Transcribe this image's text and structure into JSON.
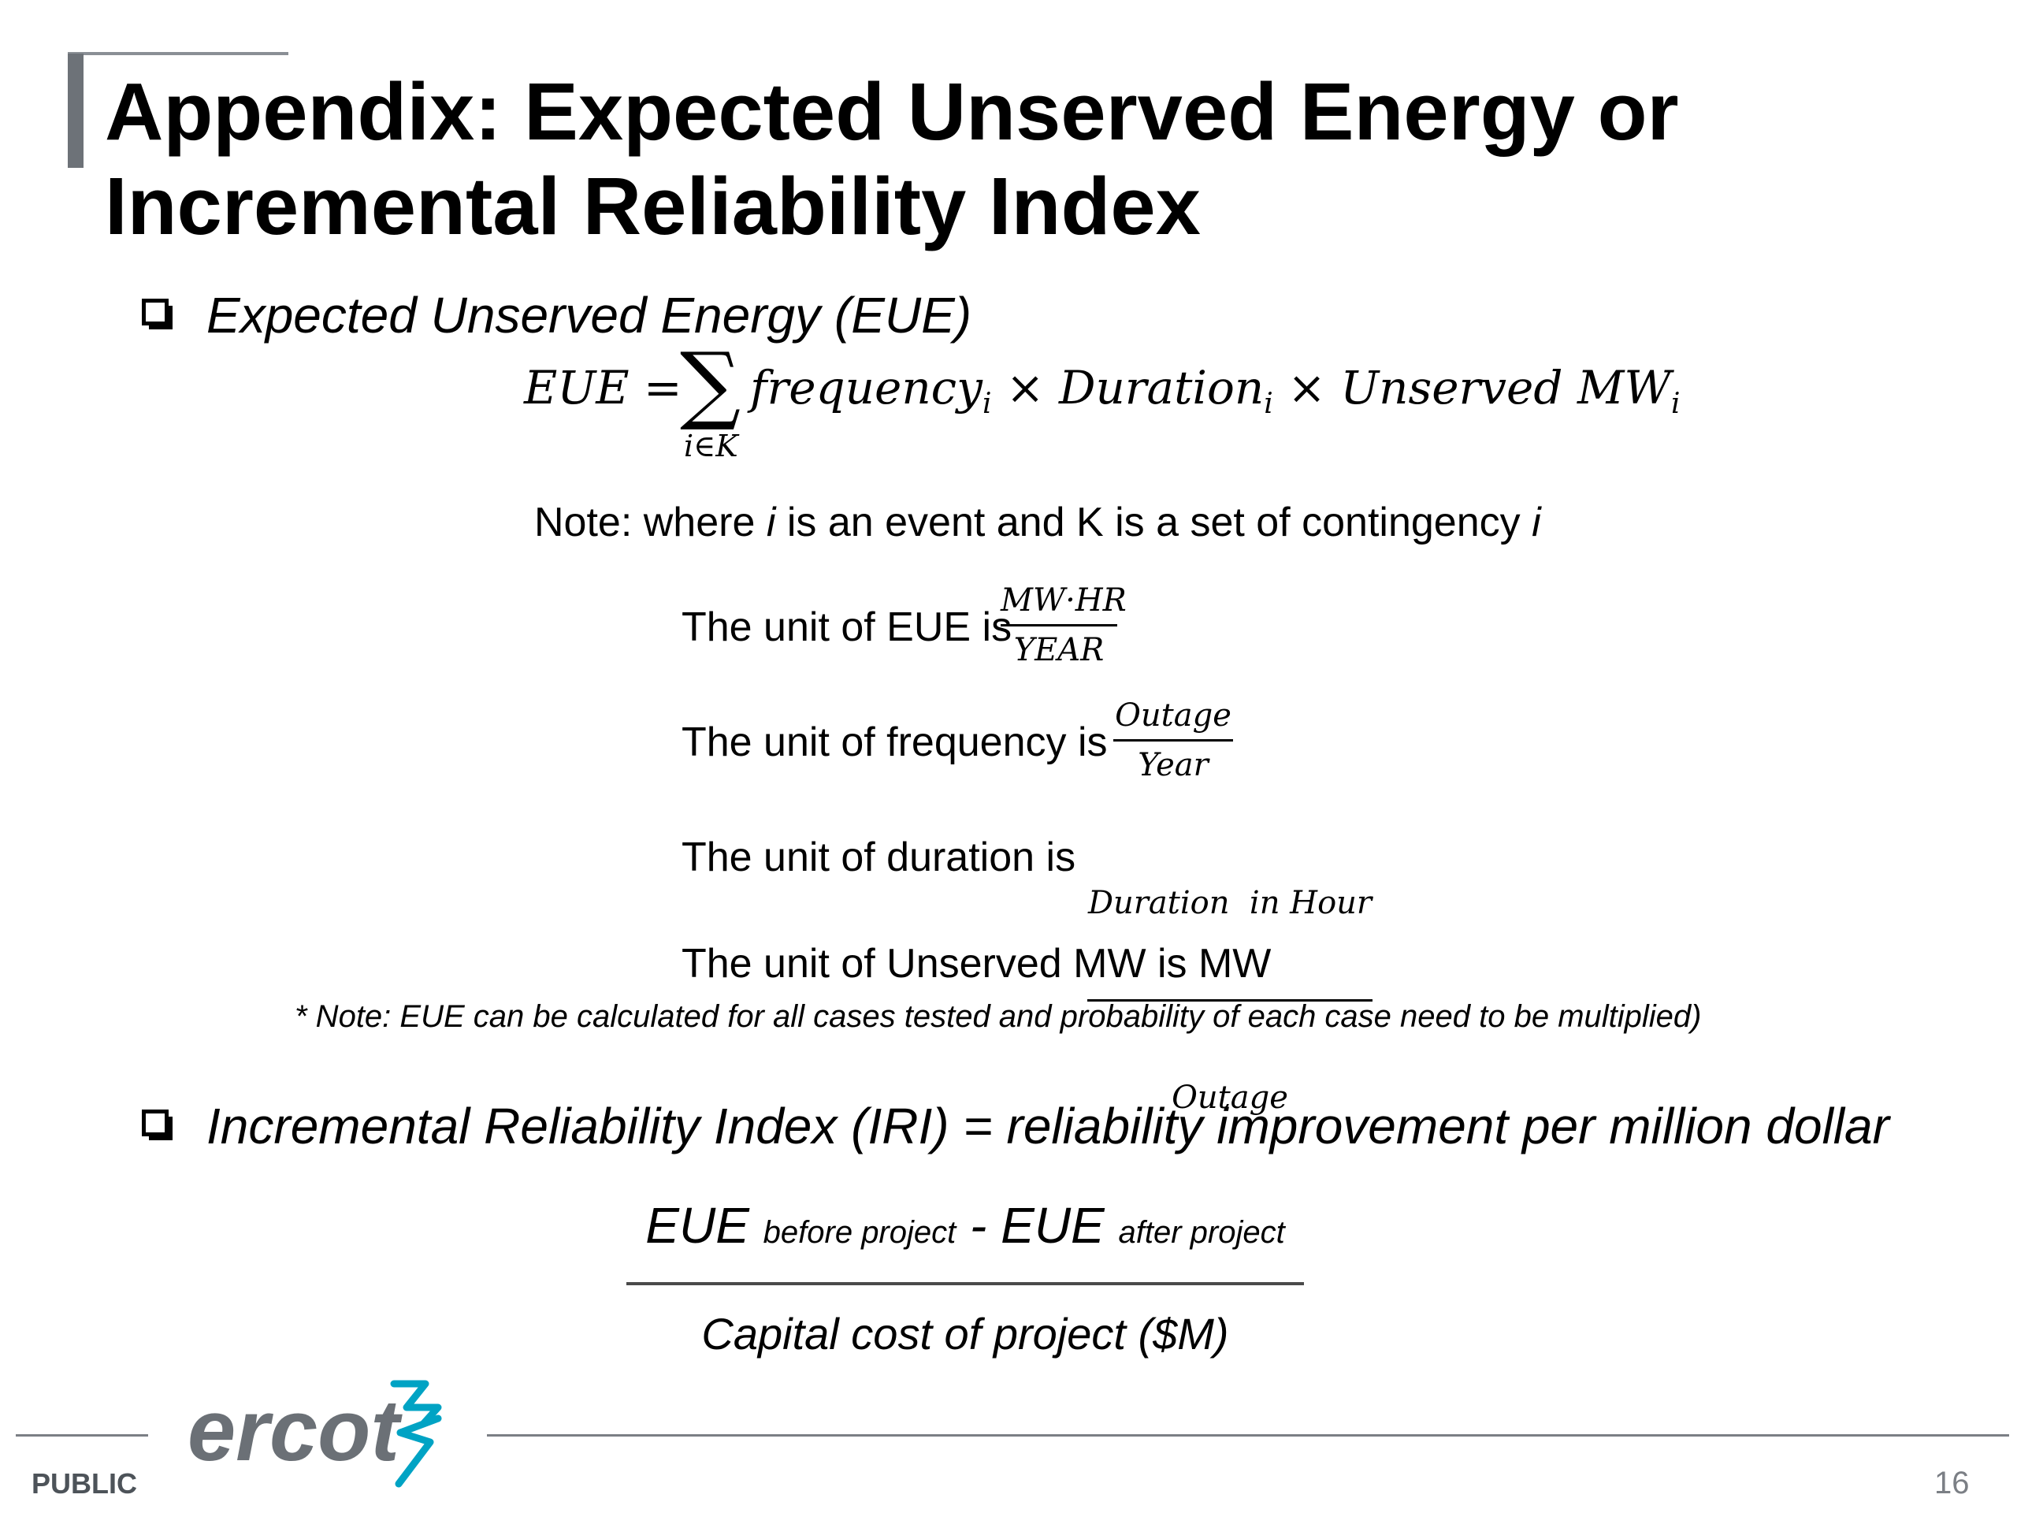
{
  "slide": {
    "title_line1": "Appendix: Expected Unserved Energy or",
    "title_line2": "Incremental Reliability Index",
    "bullet1": "Expected Unserved Energy (EUE)",
    "bullet2": "Incremental Reliability Index (IRI) = reliability improvement per million dollar"
  },
  "formula": {
    "lhs": "EUE =",
    "sigma": "∑",
    "sigma_sub": "i∈K",
    "term1": "frequency",
    "term2": "Duration",
    "term3": "Unserved MW",
    "sub": "i",
    "times": "×"
  },
  "note": {
    "part1": "Note: where ",
    "var1": "i",
    "part2": " is an event and K is a set of contingency ",
    "var2": "i"
  },
  "units": {
    "eue_label": "The unit of EUE is",
    "eue_num": "MW·HR",
    "eue_den": "YEAR",
    "freq_label": "The unit of frequency is",
    "freq_num": "Outage",
    "freq_den": "Year",
    "dur_label": "The unit of duration is",
    "dur_num": "Duration  in Hour",
    "dur_den": "Outage",
    "mw_label": "The unit of Unserved MW is MW"
  },
  "star_note": "* Note: EUE can be calculated for all cases tested and probability of each case need to be multiplied)",
  "iri": {
    "eue1": "EUE",
    "before": "before project",
    "minus": " - ",
    "eue2": "EUE",
    "after": "after project",
    "denominator": "Capital cost of project ($M)"
  },
  "footer": {
    "logo_text": "ercot",
    "public": "PUBLIC",
    "page": "16"
  },
  "colors": {
    "accent_bar": "#6d7278",
    "logo_text": "#6b7076",
    "logo_mark": "#00a3c4",
    "footer_line": "#7b7f85"
  }
}
